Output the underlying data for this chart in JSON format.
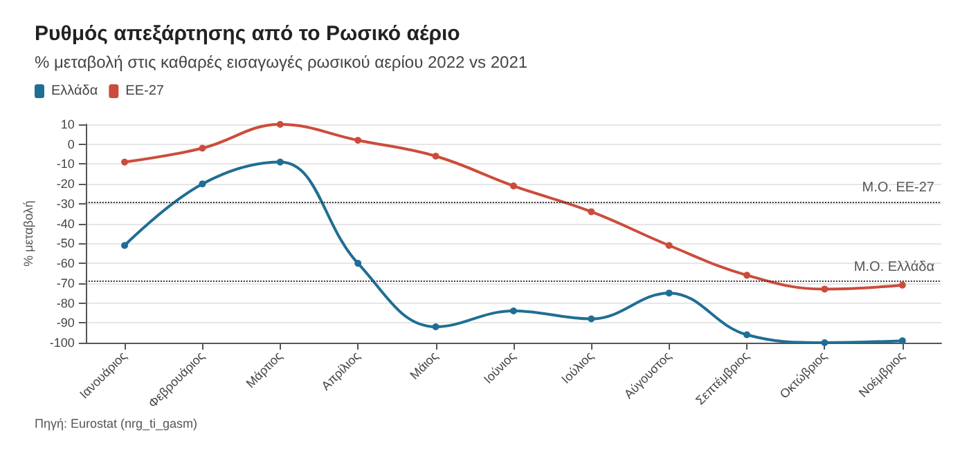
{
  "chart_data": {
    "type": "line",
    "title": "Ρυθμός απεξάρτησης από το Ρωσικό αέριο",
    "subtitle": "% μεταβολή στις καθαρές εισαγωγές ρωσικού αερίου 2022 vs 2021",
    "ylabel": "% μεταβολή",
    "annotations": [
      "Πηγή: Eurostat (nrg_ti_gasm)"
    ],
    "categories": [
      "Ιανουάριος",
      "Φεβρουάριος",
      "Μάρτιος",
      "Απρίλιος",
      "Μάιος",
      "Ιούνιος",
      "Ιούλιος",
      "Αύγουστος",
      "Σεπτέμβριος",
      "Οκτώβριος",
      "Νοέμβριος"
    ],
    "series": [
      {
        "name": "Ελλάδα",
        "color": "#1f6e94",
        "values": [
          -51,
          -20,
          -9,
          -60,
          -92,
          -84,
          -88,
          -75,
          -96,
          -100,
          -99
        ]
      },
      {
        "name": "ΕΕ-27",
        "color": "#cc4c3b",
        "values": [
          -9,
          -2,
          10,
          2,
          -6,
          -21,
          -34,
          -51,
          -66,
          -73,
          -71
        ]
      }
    ],
    "ylim": [
      -100,
      10
    ],
    "yticks": [
      -100,
      -90,
      -80,
      -70,
      -60,
      -50,
      -40,
      -30,
      -20,
      -10,
      0,
      10
    ],
    "ref_lines": [
      {
        "axis": "y",
        "value": -29,
        "label": "Μ.Ο. ΕΕ-27",
        "color": "#333333",
        "line_style": "dotted"
      },
      {
        "axis": "y",
        "value": -69,
        "label": "Μ.Ο. Ελλάδα",
        "color": "#333333",
        "line_style": "dotted"
      }
    ],
    "grid": "y",
    "legend": "top left",
    "marker": "circle",
    "line_style": "solid"
  }
}
